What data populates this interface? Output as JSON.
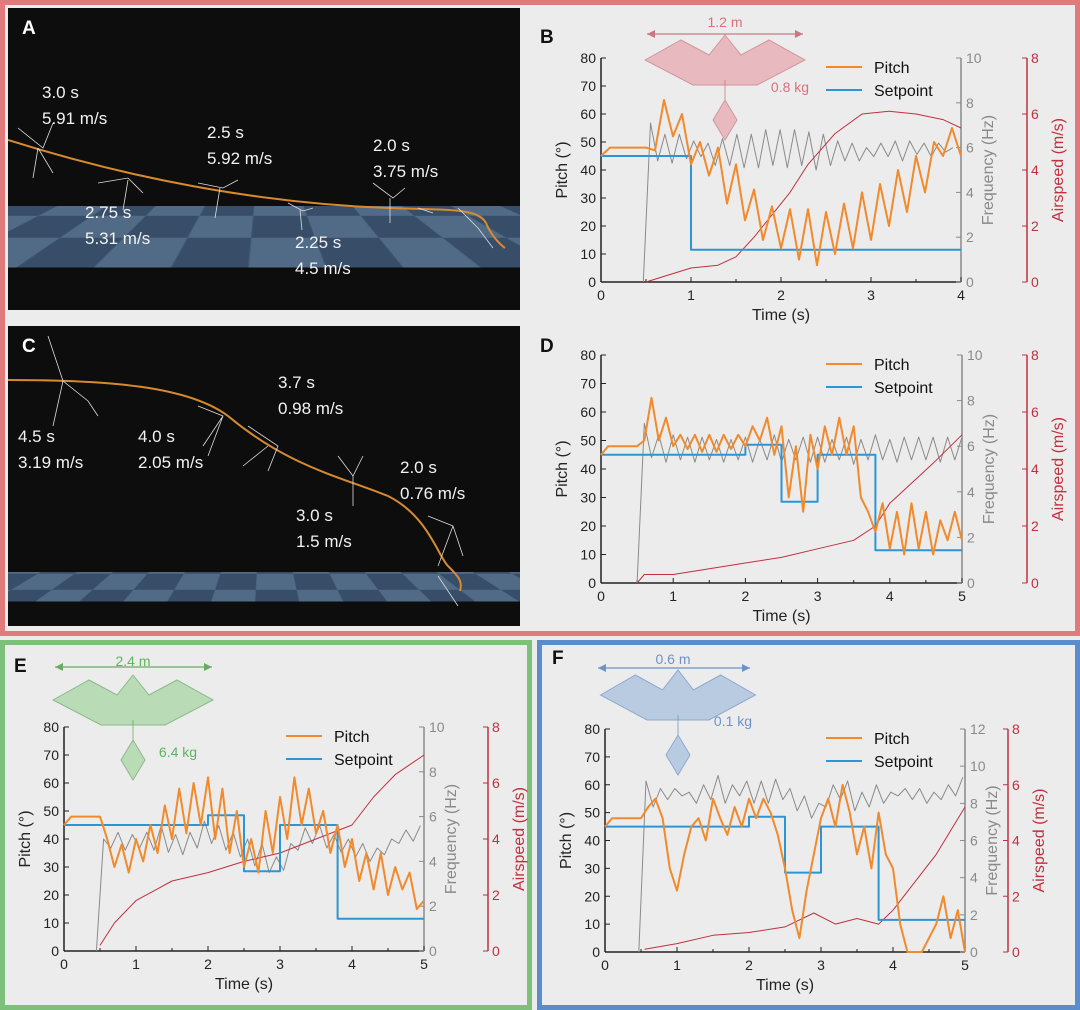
{
  "colors": {
    "pitch": "#f08a2c",
    "setpoint": "#2b95d6",
    "frequency": "#8a8a8a",
    "airspeed": "#c0303f",
    "border_top": "#e07b7b",
    "border_e": "#7cc07a",
    "border_f": "#5b8ccc"
  },
  "panels": {
    "A": {
      "letter": "A",
      "labels": [
        {
          "time": "3.0 s",
          "speed": "5.91 m/s"
        },
        {
          "time": "2.75 s",
          "speed": "5.31 m/s"
        },
        {
          "time": "2.5 s",
          "speed": "5.92 m/s"
        },
        {
          "time": "2.25 s",
          "speed": "4.5 m/s"
        },
        {
          "time": "2.0 s",
          "speed": "3.75 m/s"
        }
      ]
    },
    "C": {
      "letter": "C",
      "labels": [
        {
          "time": "4.5 s",
          "speed": "3.19 m/s"
        },
        {
          "time": "4.0 s",
          "speed": "2.05 m/s"
        },
        {
          "time": "3.7 s",
          "speed": "0.98 m/s"
        },
        {
          "time": "3.0 s",
          "speed": "1.5 m/s"
        },
        {
          "time": "2.0 s",
          "speed": "0.76 m/s"
        }
      ]
    },
    "B": {
      "letter": "B",
      "span": "1.2 m",
      "mass": "0.8 kg"
    },
    "D": {
      "letter": "D"
    },
    "E": {
      "letter": "E",
      "span": "2.4 m",
      "mass": "6.4 kg"
    },
    "F": {
      "letter": "F",
      "span": "0.6 m",
      "mass": "0.1 kg"
    }
  },
  "legend": {
    "pitch": "Pitch",
    "setpoint": "Setpoint"
  },
  "chart_data": [
    {
      "panel": "B",
      "type": "line",
      "xlabel": "Time (s)",
      "ylabel": "Pitch (°)",
      "y2label": "Frequency (Hz)",
      "y3label": "Airspeed (m/s)",
      "xlim": [
        0,
        4
      ],
      "ylim": [
        0,
        80
      ],
      "y2lim": [
        0,
        10
      ],
      "y3lim": [
        0,
        8
      ],
      "grid": false,
      "legend": "top-right",
      "setpoint": [
        [
          0,
          45
        ],
        [
          1,
          45
        ],
        [
          1,
          11.5
        ],
        [
          4,
          11.5
        ]
      ],
      "pitch": {
        "t0": 0,
        "dt": 0.1,
        "values": [
          45,
          48,
          48,
          48,
          48,
          48,
          47,
          65,
          52,
          60,
          42,
          50,
          38,
          48,
          28,
          42,
          22,
          33,
          15,
          27,
          12,
          26,
          8,
          26,
          6,
          25,
          10,
          28,
          12,
          32,
          15,
          35,
          20,
          40,
          25,
          45,
          32,
          50,
          45,
          55,
          45
        ]
      },
      "frequency": {
        "t0": 0.47,
        "dt": 0.08,
        "values": [
          0,
          7.1,
          5.4,
          6.6,
          5.3,
          6.6,
          5.5,
          6.3,
          5.6,
          6.2,
          5.2,
          6.4,
          5.2,
          6.6,
          5.1,
          6.6,
          5.1,
          6.8,
          5.2,
          6.8,
          5.1,
          6.8,
          5.2,
          6.7,
          5.0,
          6.6,
          5.2,
          6.3,
          5.4,
          6.2,
          5.4,
          6.0,
          5.6,
          6.2,
          5.6,
          6.3,
          5.4,
          6.3,
          5.7,
          6.2,
          5.6,
          6.2,
          5.8,
          6.0
        ]
      },
      "airspeed": [
        [
          0.5,
          0
        ],
        [
          0.7,
          0.2
        ],
        [
          1.0,
          0.5
        ],
        [
          1.3,
          0.6
        ],
        [
          1.5,
          0.9
        ],
        [
          1.7,
          1.6
        ],
        [
          1.9,
          2.4
        ],
        [
          2.1,
          3.2
        ],
        [
          2.3,
          4.2
        ],
        [
          2.6,
          5.3
        ],
        [
          2.9,
          6.0
        ],
        [
          3.2,
          6.1
        ],
        [
          3.5,
          6.0
        ],
        [
          3.8,
          5.8
        ],
        [
          4,
          5.5
        ]
      ]
    },
    {
      "panel": "D",
      "type": "line",
      "xlabel": "Time (s)",
      "ylabel": "Pitch (°)",
      "y2label": "Frequency (Hz)",
      "y3label": "Airspeed (m/s)",
      "xlim": [
        0,
        5
      ],
      "ylim": [
        0,
        80
      ],
      "y2lim": [
        0,
        10
      ],
      "y3lim": [
        0,
        8
      ],
      "grid": false,
      "legend": "top-right",
      "setpoint": [
        [
          0,
          45
        ],
        [
          2,
          45
        ],
        [
          2,
          48.5
        ],
        [
          2.5,
          48.5
        ],
        [
          2.5,
          28.5
        ],
        [
          3,
          28.5
        ],
        [
          3,
          45
        ],
        [
          3.8,
          45
        ],
        [
          3.8,
          11.5
        ],
        [
          5,
          11.5
        ]
      ],
      "pitch": {
        "t0": 0,
        "dt": 0.1,
        "values": [
          45,
          48,
          48,
          48,
          48,
          48,
          50,
          65,
          50,
          58,
          48,
          52,
          47,
          52,
          46,
          52,
          46,
          52,
          47,
          52,
          48,
          55,
          50,
          58,
          45,
          55,
          30,
          48,
          25,
          52,
          40,
          55,
          45,
          58,
          45,
          55,
          30,
          25,
          18,
          28,
          12,
          25,
          10,
          28,
          12,
          25,
          10,
          22,
          15,
          25,
          15
        ]
      },
      "frequency": {
        "t0": 0.5,
        "dt": 0.1,
        "values": [
          0,
          7,
          5.5,
          6.5,
          5.3,
          6.5,
          5.4,
          6.4,
          5.3,
          6.4,
          5.4,
          6.3,
          5.3,
          6.3,
          5.4,
          6.4,
          5.3,
          6.3,
          5.4,
          6.5,
          5.3,
          6.3,
          5.4,
          6.4,
          5.3,
          6.4,
          5.3,
          6.3,
          5.4,
          6.4,
          5.2,
          6.3,
          5.4,
          6.5,
          5.4,
          6.3,
          5.3,
          6.4,
          5.4,
          6.4,
          5.4,
          6.4,
          5.3,
          6.4,
          5.4,
          6.4
        ]
      },
      "airspeed": [
        [
          0.5,
          0
        ],
        [
          0.6,
          0.3
        ],
        [
          1.0,
          0.3
        ],
        [
          1.5,
          0.5
        ],
        [
          2.0,
          0.7
        ],
        [
          2.5,
          0.9
        ],
        [
          3.0,
          1.2
        ],
        [
          3.5,
          1.5
        ],
        [
          3.8,
          2.0
        ],
        [
          4.0,
          2.8
        ],
        [
          4.3,
          3.5
        ],
        [
          4.6,
          4.2
        ],
        [
          5,
          5.2
        ]
      ]
    },
    {
      "panel": "E",
      "type": "line",
      "xlabel": "Time (s)",
      "ylabel": "Pitch (°)",
      "y2label": "Frequency (Hz)",
      "y3label": "Airspeed (m/s)",
      "xlim": [
        0,
        5
      ],
      "ylim": [
        0,
        80
      ],
      "y2lim": [
        0,
        10
      ],
      "y3lim": [
        0,
        8
      ],
      "grid": false,
      "legend": "top-right",
      "setpoint": [
        [
          0,
          45
        ],
        [
          2,
          45
        ],
        [
          2,
          48.5
        ],
        [
          2.5,
          48.5
        ],
        [
          2.5,
          28.5
        ],
        [
          3,
          28.5
        ],
        [
          3,
          45
        ],
        [
          3.8,
          45
        ],
        [
          3.8,
          11.5
        ],
        [
          5,
          11.5
        ]
      ],
      "pitch": {
        "t0": 0,
        "dt": 0.1,
        "values": [
          45,
          48,
          48,
          48,
          48,
          48,
          40,
          30,
          38,
          28,
          40,
          32,
          45,
          35,
          52,
          40,
          58,
          42,
          60,
          45,
          62,
          40,
          58,
          35,
          50,
          30,
          40,
          28,
          50,
          35,
          55,
          40,
          62,
          45,
          58,
          42,
          50,
          35,
          45,
          30,
          40,
          25,
          35,
          22,
          35,
          20,
          30,
          22,
          28,
          15,
          18
        ]
      },
      "frequency": {
        "t0": 0.45,
        "dt": 0.1,
        "values": [
          0,
          5,
          4.6,
          5.3,
          4.5,
          5.2,
          4.6,
          5.3,
          4.5,
          5.6,
          4.4,
          5.2,
          4.3,
          5.3,
          4.6,
          5.8,
          4.8,
          5.6,
          4.5,
          5.3,
          4.2,
          5.0,
          3.8,
          4.8,
          3.5,
          4.2,
          3.6,
          4.8,
          4.5,
          5.5,
          4.8,
          5.6,
          4.6,
          5.2,
          4.4,
          5.0,
          4.2,
          4.8,
          4.0,
          4.6,
          4.3,
          5.0,
          4.8,
          5.4,
          4.9,
          5.6
        ]
      },
      "airspeed": [
        [
          0.5,
          0.2
        ],
        [
          0.7,
          1.0
        ],
        [
          1.0,
          1.8
        ],
        [
          1.5,
          2.5
        ],
        [
          2.0,
          2.8
        ],
        [
          2.5,
          3.2
        ],
        [
          3.0,
          3.5
        ],
        [
          3.5,
          4.0
        ],
        [
          4.0,
          4.5
        ],
        [
          4.3,
          5.5
        ],
        [
          4.6,
          6.3
        ],
        [
          5,
          7.0
        ]
      ]
    },
    {
      "panel": "F",
      "type": "line",
      "xlabel": "Time (s)",
      "ylabel": "Pitch (°)",
      "y2label": "Frequency (Hz)",
      "y3label": "Airspeed (m/s)",
      "xlim": [
        0,
        5
      ],
      "ylim": [
        0,
        80
      ],
      "y2lim": [
        0,
        12
      ],
      "y3lim": [
        0,
        8
      ],
      "grid": false,
      "legend": "top-right",
      "setpoint": [
        [
          0,
          45
        ],
        [
          2,
          45
        ],
        [
          2,
          48.5
        ],
        [
          2.5,
          48.5
        ],
        [
          2.5,
          28.5
        ],
        [
          3,
          28.5
        ],
        [
          3,
          45
        ],
        [
          3.8,
          45
        ],
        [
          3.8,
          11.5
        ],
        [
          5,
          11.5
        ]
      ],
      "pitch": {
        "t0": 0,
        "dt": 0.1,
        "values": [
          45,
          48,
          48,
          48,
          48,
          48,
          52,
          55,
          48,
          30,
          22,
          35,
          45,
          48,
          40,
          55,
          48,
          42,
          52,
          45,
          55,
          48,
          55,
          50,
          42,
          30,
          15,
          5,
          22,
          35,
          48,
          55,
          45,
          60,
          50,
          35,
          45,
          30,
          50,
          35,
          30,
          10,
          0,
          0,
          0,
          5,
          10,
          20,
          5,
          15,
          0
        ]
      },
      "frequency": {
        "t0": 0.47,
        "dt": 0.1,
        "values": [
          0,
          9.2,
          7.8,
          8.8,
          8.2,
          8.8,
          8.4,
          8.6,
          8.0,
          9.0,
          8.2,
          9.5,
          8.0,
          9.0,
          8.4,
          9.2,
          8.0,
          9.2,
          8.0,
          9.3,
          8.2,
          8.8,
          7.6,
          8.4,
          7.2,
          8.0,
          7.8,
          9.0,
          8.2,
          9.2,
          7.6,
          8.6,
          7.8,
          9.0,
          8.0,
          8.6,
          8.4,
          8.8,
          8.2,
          8.8,
          8.0,
          8.6,
          8.2,
          9.0,
          8.4,
          9.4
        ]
      },
      "airspeed": [
        [
          0.55,
          0.1
        ],
        [
          1.0,
          0.3
        ],
        [
          1.5,
          0.6
        ],
        [
          2.0,
          0.7
        ],
        [
          2.5,
          0.9
        ],
        [
          2.9,
          1.4
        ],
        [
          3.2,
          1.0
        ],
        [
          3.5,
          1.2
        ],
        [
          3.8,
          1.0
        ],
        [
          4.0,
          1.5
        ],
        [
          4.3,
          2.5
        ],
        [
          4.6,
          3.5
        ],
        [
          5,
          5.2
        ]
      ]
    }
  ]
}
